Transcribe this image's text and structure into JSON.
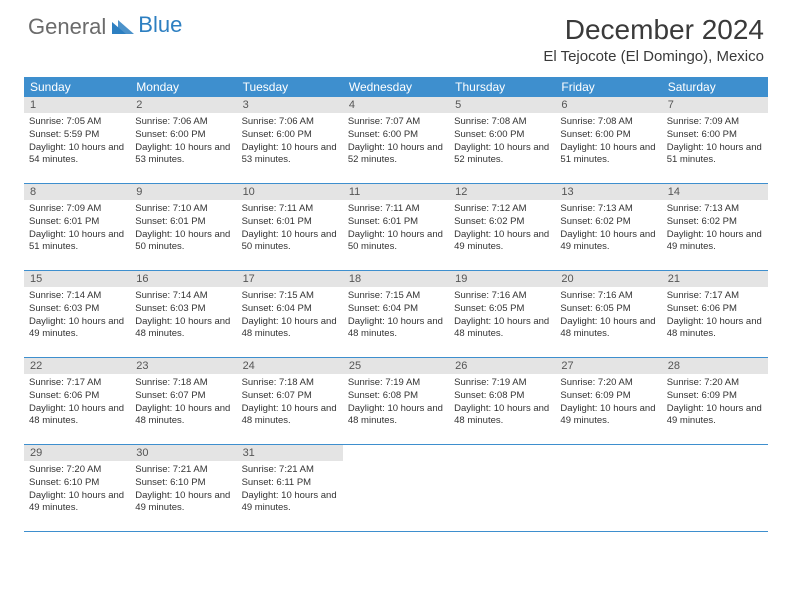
{
  "logo": {
    "text1": "General",
    "text2": "Blue"
  },
  "title": "December 2024",
  "location": "El Tejocote (El Domingo), Mexico",
  "colors": {
    "header_bg": "#3e8fce",
    "daynum_bg": "#e4e4e4",
    "border": "#3e8fce",
    "logo_gray": "#6b6b6b",
    "logo_blue": "#2d7fc1"
  },
  "day_headers": [
    "Sunday",
    "Monday",
    "Tuesday",
    "Wednesday",
    "Thursday",
    "Friday",
    "Saturday"
  ],
  "weeks": [
    [
      {
        "n": "1",
        "sr": "7:05 AM",
        "ss": "5:59 PM",
        "dl": "10 hours and 54 minutes."
      },
      {
        "n": "2",
        "sr": "7:06 AM",
        "ss": "6:00 PM",
        "dl": "10 hours and 53 minutes."
      },
      {
        "n": "3",
        "sr": "7:06 AM",
        "ss": "6:00 PM",
        "dl": "10 hours and 53 minutes."
      },
      {
        "n": "4",
        "sr": "7:07 AM",
        "ss": "6:00 PM",
        "dl": "10 hours and 52 minutes."
      },
      {
        "n": "5",
        "sr": "7:08 AM",
        "ss": "6:00 PM",
        "dl": "10 hours and 52 minutes."
      },
      {
        "n": "6",
        "sr": "7:08 AM",
        "ss": "6:00 PM",
        "dl": "10 hours and 51 minutes."
      },
      {
        "n": "7",
        "sr": "7:09 AM",
        "ss": "6:00 PM",
        "dl": "10 hours and 51 minutes."
      }
    ],
    [
      {
        "n": "8",
        "sr": "7:09 AM",
        "ss": "6:01 PM",
        "dl": "10 hours and 51 minutes."
      },
      {
        "n": "9",
        "sr": "7:10 AM",
        "ss": "6:01 PM",
        "dl": "10 hours and 50 minutes."
      },
      {
        "n": "10",
        "sr": "7:11 AM",
        "ss": "6:01 PM",
        "dl": "10 hours and 50 minutes."
      },
      {
        "n": "11",
        "sr": "7:11 AM",
        "ss": "6:01 PM",
        "dl": "10 hours and 50 minutes."
      },
      {
        "n": "12",
        "sr": "7:12 AM",
        "ss": "6:02 PM",
        "dl": "10 hours and 49 minutes."
      },
      {
        "n": "13",
        "sr": "7:13 AM",
        "ss": "6:02 PM",
        "dl": "10 hours and 49 minutes."
      },
      {
        "n": "14",
        "sr": "7:13 AM",
        "ss": "6:02 PM",
        "dl": "10 hours and 49 minutes."
      }
    ],
    [
      {
        "n": "15",
        "sr": "7:14 AM",
        "ss": "6:03 PM",
        "dl": "10 hours and 49 minutes."
      },
      {
        "n": "16",
        "sr": "7:14 AM",
        "ss": "6:03 PM",
        "dl": "10 hours and 48 minutes."
      },
      {
        "n": "17",
        "sr": "7:15 AM",
        "ss": "6:04 PM",
        "dl": "10 hours and 48 minutes."
      },
      {
        "n": "18",
        "sr": "7:15 AM",
        "ss": "6:04 PM",
        "dl": "10 hours and 48 minutes."
      },
      {
        "n": "19",
        "sr": "7:16 AM",
        "ss": "6:05 PM",
        "dl": "10 hours and 48 minutes."
      },
      {
        "n": "20",
        "sr": "7:16 AM",
        "ss": "6:05 PM",
        "dl": "10 hours and 48 minutes."
      },
      {
        "n": "21",
        "sr": "7:17 AM",
        "ss": "6:06 PM",
        "dl": "10 hours and 48 minutes."
      }
    ],
    [
      {
        "n": "22",
        "sr": "7:17 AM",
        "ss": "6:06 PM",
        "dl": "10 hours and 48 minutes."
      },
      {
        "n": "23",
        "sr": "7:18 AM",
        "ss": "6:07 PM",
        "dl": "10 hours and 48 minutes."
      },
      {
        "n": "24",
        "sr": "7:18 AM",
        "ss": "6:07 PM",
        "dl": "10 hours and 48 minutes."
      },
      {
        "n": "25",
        "sr": "7:19 AM",
        "ss": "6:08 PM",
        "dl": "10 hours and 48 minutes."
      },
      {
        "n": "26",
        "sr": "7:19 AM",
        "ss": "6:08 PM",
        "dl": "10 hours and 48 minutes."
      },
      {
        "n": "27",
        "sr": "7:20 AM",
        "ss": "6:09 PM",
        "dl": "10 hours and 49 minutes."
      },
      {
        "n": "28",
        "sr": "7:20 AM",
        "ss": "6:09 PM",
        "dl": "10 hours and 49 minutes."
      }
    ],
    [
      {
        "n": "29",
        "sr": "7:20 AM",
        "ss": "6:10 PM",
        "dl": "10 hours and 49 minutes."
      },
      {
        "n": "30",
        "sr": "7:21 AM",
        "ss": "6:10 PM",
        "dl": "10 hours and 49 minutes."
      },
      {
        "n": "31",
        "sr": "7:21 AM",
        "ss": "6:11 PM",
        "dl": "10 hours and 49 minutes."
      },
      null,
      null,
      null,
      null
    ]
  ],
  "labels": {
    "sunrise": "Sunrise:",
    "sunset": "Sunset:",
    "daylight": "Daylight:"
  }
}
